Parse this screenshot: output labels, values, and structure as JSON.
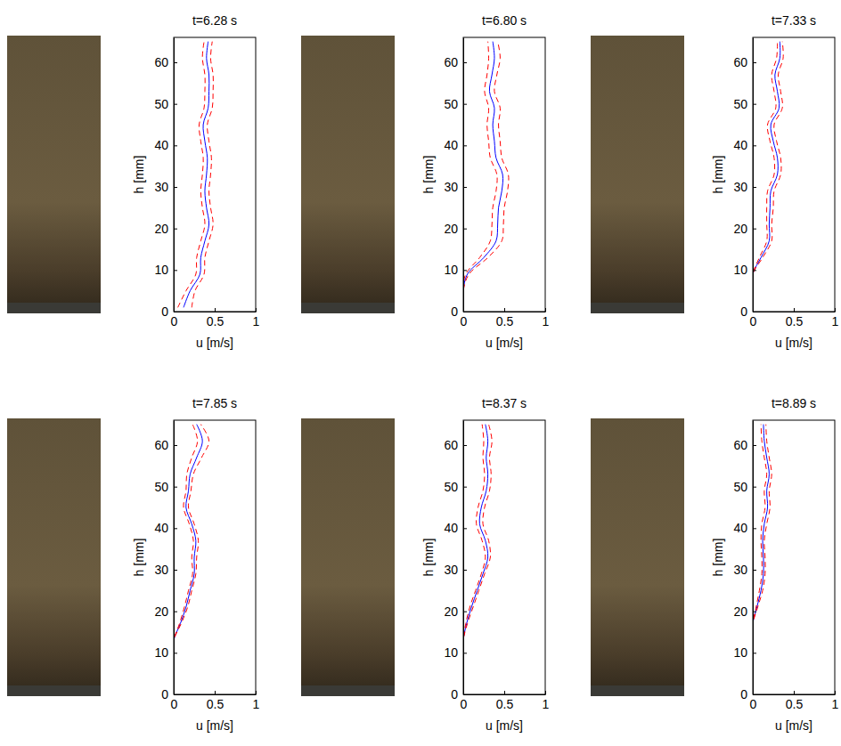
{
  "chart_data": [
    {
      "type": "line",
      "title": "t=6.28 s",
      "x_label": "u [m/s]",
      "y_label": "h [mm]",
      "y": [
        1,
        5,
        9,
        13,
        17,
        21,
        25,
        29,
        33,
        37,
        41,
        45,
        49,
        53,
        57,
        61,
        65
      ],
      "series": [
        {
          "color": "#0000ff",
          "line_style": "solid",
          "values": [
            0.12,
            0.2,
            0.32,
            0.33,
            0.38,
            0.43,
            0.4,
            0.38,
            0.4,
            0.41,
            0.38,
            0.36,
            0.42,
            0.43,
            0.43,
            0.4,
            0.42
          ]
        },
        {
          "color": "#ff0000",
          "line_style": "dashed",
          "values": [
            0.05,
            0.15,
            0.27,
            0.28,
            0.33,
            0.38,
            0.35,
            0.33,
            0.35,
            0.36,
            0.33,
            0.31,
            0.37,
            0.38,
            0.38,
            0.35,
            0.37
          ]
        },
        {
          "color": "#ff0000",
          "line_style": "dashed",
          "values": [
            0.22,
            0.26,
            0.37,
            0.38,
            0.43,
            0.48,
            0.45,
            0.43,
            0.45,
            0.46,
            0.43,
            0.41,
            0.47,
            0.48,
            0.48,
            0.45,
            0.47
          ]
        }
      ],
      "xlim": [
        0,
        1
      ],
      "ylim": [
        0,
        66
      ],
      "xticks": [
        0,
        0.5,
        1
      ],
      "yticks": [
        0,
        10,
        20,
        30,
        40,
        50,
        60
      ]
    },
    {
      "type": "line",
      "title": "t=6.80 s",
      "x_label": "u [m/s]",
      "y_label": "h [mm]",
      "y": [
        1,
        5,
        9,
        13,
        17,
        21,
        25,
        29,
        33,
        37,
        41,
        45,
        49,
        53,
        57,
        61,
        65
      ],
      "series": [
        {
          "color": "#0000ff",
          "line_style": "solid",
          "values": [
            0,
            0,
            0.05,
            0.25,
            0.4,
            0.42,
            0.43,
            0.47,
            0.48,
            0.4,
            0.38,
            0.36,
            0.38,
            0.32,
            0.35,
            0.38,
            0.36
          ]
        },
        {
          "color": "#ff0000",
          "line_style": "dashed",
          "values": [
            0,
            0,
            0.03,
            0.2,
            0.33,
            0.35,
            0.36,
            0.4,
            0.41,
            0.33,
            0.31,
            0.29,
            0.31,
            0.26,
            0.29,
            0.31,
            0.3
          ]
        },
        {
          "color": "#ff0000",
          "line_style": "dashed",
          "values": [
            0,
            0,
            0.07,
            0.3,
            0.47,
            0.49,
            0.5,
            0.54,
            0.55,
            0.47,
            0.45,
            0.43,
            0.45,
            0.38,
            0.41,
            0.45,
            0.42
          ]
        }
      ],
      "xlim": [
        0,
        1
      ],
      "ylim": [
        0,
        66
      ],
      "xticks": [
        0,
        0.5,
        1
      ],
      "yticks": [
        0,
        10,
        20,
        30,
        40,
        50,
        60
      ]
    },
    {
      "type": "line",
      "title": "t=7.33 s",
      "x_label": "u [m/s]",
      "y_label": "h [mm]",
      "y": [
        1,
        5,
        9,
        13,
        17,
        21,
        25,
        29,
        33,
        37,
        41,
        45,
        49,
        53,
        57,
        61,
        65
      ],
      "series": [
        {
          "color": "#0000ff",
          "line_style": "solid",
          "values": [
            0,
            0,
            0,
            0.1,
            0.2,
            0.2,
            0.21,
            0.22,
            0.3,
            0.3,
            0.25,
            0.22,
            0.32,
            0.3,
            0.27,
            0.33,
            0.33
          ]
        },
        {
          "color": "#ff0000",
          "line_style": "dashed",
          "values": [
            0,
            0,
            0,
            0.08,
            0.17,
            0.17,
            0.17,
            0.18,
            0.26,
            0.26,
            0.21,
            0.18,
            0.28,
            0.26,
            0.23,
            0.29,
            0.3
          ]
        },
        {
          "color": "#ff0000",
          "line_style": "dashed",
          "values": [
            0,
            0,
            0,
            0.12,
            0.23,
            0.23,
            0.25,
            0.26,
            0.34,
            0.34,
            0.29,
            0.26,
            0.36,
            0.34,
            0.31,
            0.37,
            0.36
          ]
        }
      ],
      "xlim": [
        0,
        1
      ],
      "ylim": [
        0,
        66
      ],
      "xticks": [
        0,
        0.5,
        1
      ],
      "yticks": [
        0,
        10,
        20,
        30,
        40,
        50,
        60
      ]
    },
    {
      "type": "line",
      "title": "t=7.85 s",
      "x_label": "u [m/s]",
      "y_label": "h [mm]",
      "y": [
        1,
        5,
        9,
        13,
        17,
        21,
        25,
        29,
        33,
        37,
        41,
        45,
        49,
        53,
        57,
        61,
        65
      ],
      "series": [
        {
          "color": "#0000ff",
          "line_style": "solid",
          "values": [
            0,
            0,
            0,
            0,
            0.08,
            0.15,
            0.2,
            0.25,
            0.25,
            0.27,
            0.22,
            0.15,
            0.18,
            0.2,
            0.28,
            0.35,
            0.28
          ]
        },
        {
          "color": "#ff0000",
          "line_style": "dashed",
          "values": [
            0,
            0,
            0,
            0,
            0.07,
            0.13,
            0.18,
            0.23,
            0.22,
            0.24,
            0.19,
            0.12,
            0.15,
            0.16,
            0.22,
            0.29,
            0.23
          ]
        },
        {
          "color": "#ff0000",
          "line_style": "dashed",
          "values": [
            0,
            0,
            0,
            0,
            0.09,
            0.17,
            0.22,
            0.27,
            0.28,
            0.3,
            0.25,
            0.18,
            0.21,
            0.24,
            0.34,
            0.43,
            0.33
          ]
        }
      ],
      "xlim": [
        0,
        1
      ],
      "ylim": [
        0,
        66
      ],
      "xticks": [
        0,
        0.5,
        1
      ],
      "yticks": [
        0,
        10,
        20,
        30,
        40,
        50,
        60
      ]
    },
    {
      "type": "line",
      "title": "t=8.37 s",
      "x_label": "u [m/s]",
      "y_label": "h [mm]",
      "y": [
        1,
        5,
        9,
        13,
        17,
        21,
        25,
        29,
        33,
        37,
        41,
        45,
        49,
        53,
        57,
        61,
        65
      ],
      "series": [
        {
          "color": "#0000ff",
          "line_style": "solid",
          "values": [
            0,
            0,
            0,
            0,
            0.04,
            0.1,
            0.17,
            0.24,
            0.3,
            0.27,
            0.2,
            0.22,
            0.28,
            0.3,
            0.28,
            0.3,
            0.27
          ]
        },
        {
          "color": "#ff0000",
          "line_style": "dashed",
          "values": [
            0,
            0,
            0,
            0,
            0.03,
            0.08,
            0.15,
            0.22,
            0.27,
            0.23,
            0.16,
            0.18,
            0.24,
            0.26,
            0.24,
            0.25,
            0.23
          ]
        },
        {
          "color": "#ff0000",
          "line_style": "dashed",
          "values": [
            0,
            0,
            0,
            0,
            0.05,
            0.12,
            0.19,
            0.26,
            0.33,
            0.31,
            0.24,
            0.26,
            0.32,
            0.34,
            0.32,
            0.35,
            0.31
          ]
        }
      ],
      "xlim": [
        0,
        1
      ],
      "ylim": [
        0,
        66
      ],
      "xticks": [
        0,
        0.5,
        1
      ],
      "yticks": [
        0,
        10,
        20,
        30,
        40,
        50,
        60
      ]
    },
    {
      "type": "line",
      "title": "t=8.89 s",
      "x_label": "u [m/s]",
      "y_label": "h [mm]",
      "y": [
        1,
        5,
        9,
        13,
        17,
        21,
        25,
        29,
        33,
        37,
        41,
        45,
        49,
        53,
        57,
        61,
        65
      ],
      "series": [
        {
          "color": "#0000ff",
          "line_style": "solid",
          "values": [
            0,
            0,
            0,
            0,
            0,
            0.05,
            0.1,
            0.13,
            0.13,
            0.12,
            0.14,
            0.18,
            0.17,
            0.2,
            0.17,
            0.14,
            0.13
          ]
        },
        {
          "color": "#ff0000",
          "line_style": "dashed",
          "values": [
            0,
            0,
            0,
            0,
            0,
            0.04,
            0.08,
            0.11,
            0.11,
            0.1,
            0.11,
            0.15,
            0.14,
            0.17,
            0.14,
            0.11,
            0.1
          ]
        },
        {
          "color": "#ff0000",
          "line_style": "dashed",
          "values": [
            0,
            0,
            0,
            0,
            0,
            0.06,
            0.12,
            0.15,
            0.15,
            0.14,
            0.17,
            0.21,
            0.2,
            0.23,
            0.2,
            0.17,
            0.16
          ]
        }
      ],
      "xlim": [
        0,
        1
      ],
      "ylim": [
        0,
        66
      ],
      "xticks": [
        0,
        0.5,
        1
      ],
      "yticks": [
        0,
        10,
        20,
        30,
        40,
        50,
        60
      ]
    }
  ]
}
